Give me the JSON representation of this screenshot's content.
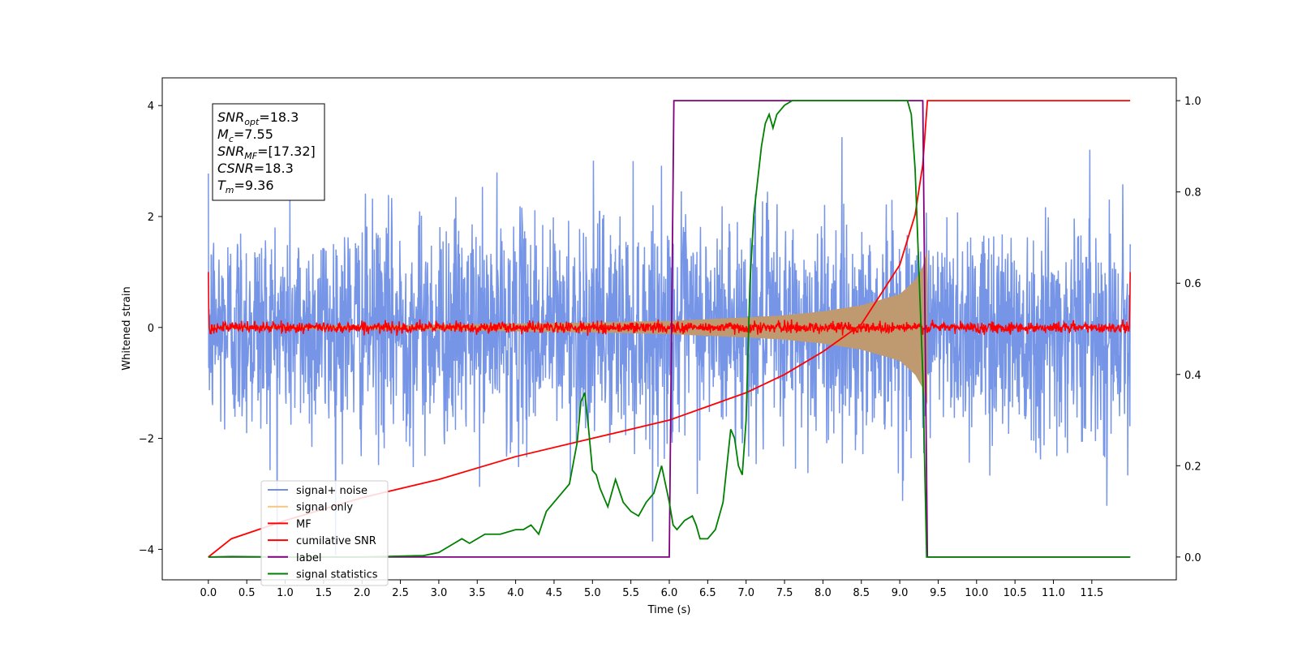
{
  "chart_data": {
    "type": "line",
    "title": "",
    "xlabel": "Time (s)",
    "ylabel": "Whitened strain",
    "xlim": [
      -0.6,
      12.6
    ],
    "ylim": [
      -4.55,
      4.5
    ],
    "y2lim": [
      -0.05,
      1.05
    ],
    "x_ticks": [
      0.0,
      0.5,
      1.0,
      1.5,
      2.0,
      2.5,
      3.0,
      3.5,
      4.0,
      4.5,
      5.0,
      5.5,
      6.0,
      6.5,
      7.0,
      7.5,
      8.0,
      8.5,
      9.0,
      9.5,
      10.0,
      10.5,
      11.0,
      11.5
    ],
    "x_tick_labels": [
      "0.0",
      "0.5",
      "1.0",
      "1.5",
      "2.0",
      "2.5",
      "3.0",
      "3.5",
      "4.0",
      "4.5",
      "5.0",
      "5.5",
      "6.0",
      "6.5",
      "7.0",
      "7.5",
      "8.0",
      "8.5",
      "9.0",
      "9.5",
      "10.0",
      "10.5",
      "11.0",
      "11.5"
    ],
    "y_ticks": [
      -4,
      -2,
      0,
      2,
      4
    ],
    "y_tick_labels": [
      "−4",
      "−2",
      "0",
      "2",
      "4"
    ],
    "y2_ticks": [
      0.0,
      0.2,
      0.4,
      0.6,
      0.8,
      1.0
    ],
    "y2_tick_labels": [
      "0.0",
      "0.2",
      "0.4",
      "0.6",
      "0.8",
      "1.0"
    ],
    "grid": false,
    "legend_position": "lower-left",
    "series": [
      {
        "name": "signal+ noise",
        "axis": "left",
        "color": "#6f8fe6",
        "x_range": [
          0,
          12
        ],
        "noise_std": 1.0,
        "max_abs": 4.1
      },
      {
        "name": "signal only",
        "axis": "left",
        "color": "#f5c77e",
        "x_range": [
          0,
          12
        ],
        "envelope_x": [
          0,
          1,
          2,
          3,
          4,
          5,
          6,
          7,
          7.5,
          8,
          8.5,
          9,
          9.2,
          9.3,
          9.36
        ],
        "envelope_y": [
          0.02,
          0.03,
          0.04,
          0.05,
          0.07,
          0.09,
          0.12,
          0.18,
          0.22,
          0.29,
          0.4,
          0.6,
          0.85,
          1.1,
          1.4
        ]
      },
      {
        "name": "MF",
        "axis": "left",
        "color": "#ff0000",
        "x_range": [
          0,
          12
        ],
        "noise_std": 0.05,
        "edge_value": 1.0
      },
      {
        "name": "cumilative SNR",
        "axis": "right",
        "color": "#ff0000",
        "x": [
          0,
          0.3,
          1,
          2,
          3,
          4,
          5,
          6,
          7,
          7.5,
          8,
          8.5,
          9,
          9.2,
          9.3,
          9.36,
          12
        ],
        "y": [
          0.0,
          0.04,
          0.08,
          0.13,
          0.17,
          0.22,
          0.26,
          0.3,
          0.36,
          0.4,
          0.45,
          0.51,
          0.64,
          0.75,
          0.86,
          1.0,
          1.0
        ]
      },
      {
        "name": "label",
        "axis": "right",
        "color": "#800080",
        "x": [
          0,
          6.0,
          6.06,
          9.3,
          9.36,
          12
        ],
        "y": [
          0.0,
          0.0,
          1.0,
          1.0,
          0.0,
          0.0
        ]
      },
      {
        "name": "signal statistics",
        "axis": "right",
        "color": "#008000",
        "x": [
          0,
          0.3,
          1,
          2,
          2.5,
          2.8,
          3.0,
          3.1,
          3.2,
          3.3,
          3.4,
          3.5,
          3.6,
          3.8,
          4.0,
          4.1,
          4.2,
          4.3,
          4.4,
          4.5,
          4.6,
          4.7,
          4.8,
          4.85,
          4.9,
          4.95,
          5.0,
          5.05,
          5.1,
          5.2,
          5.3,
          5.4,
          5.5,
          5.6,
          5.7,
          5.8,
          5.9,
          6.0,
          6.05,
          6.1,
          6.2,
          6.3,
          6.35,
          6.4,
          6.5,
          6.6,
          6.7,
          6.8,
          6.85,
          6.9,
          6.95,
          7.0,
          7.05,
          7.1,
          7.2,
          7.25,
          7.3,
          7.35,
          7.4,
          7.5,
          7.6,
          8.0,
          8.5,
          9.0,
          9.1,
          9.15,
          9.2,
          9.3,
          9.35,
          9.4,
          12
        ],
        "y": [
          0.0,
          0.001,
          0.0,
          0.0,
          0.002,
          0.003,
          0.01,
          0.02,
          0.03,
          0.04,
          0.03,
          0.04,
          0.05,
          0.05,
          0.06,
          0.06,
          0.07,
          0.05,
          0.1,
          0.12,
          0.14,
          0.16,
          0.25,
          0.34,
          0.36,
          0.28,
          0.19,
          0.18,
          0.15,
          0.11,
          0.17,
          0.12,
          0.1,
          0.09,
          0.12,
          0.14,
          0.2,
          0.12,
          0.07,
          0.06,
          0.08,
          0.09,
          0.07,
          0.04,
          0.04,
          0.06,
          0.12,
          0.28,
          0.26,
          0.2,
          0.18,
          0.3,
          0.6,
          0.75,
          0.9,
          0.95,
          0.97,
          0.94,
          0.97,
          0.99,
          1.0,
          1.0,
          1.0,
          1.0,
          1.0,
          0.97,
          0.85,
          0.4,
          0.0,
          0.0,
          0.0
        ]
      }
    ],
    "annotations": {
      "box_lines": [
        {
          "base": "SNR",
          "sub": "opt",
          "value": "=18.3"
        },
        {
          "base": "M",
          "sub": "c",
          "value": "=7.55"
        },
        {
          "base": "SNR",
          "sub": "MF",
          "value": "=[17.32]"
        },
        {
          "base": "CSNR",
          "sub": "",
          "value": "=18.3"
        },
        {
          "base": "T",
          "sub": "m",
          "value": "=9.36"
        }
      ]
    }
  }
}
